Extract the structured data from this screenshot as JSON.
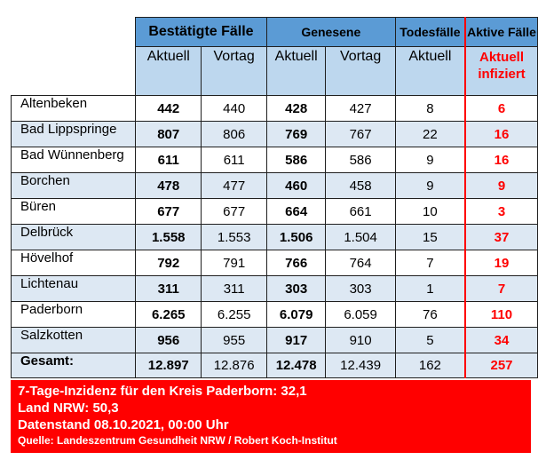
{
  "header": {
    "group1": "Bestätigte Fälle",
    "group2": "Genesene",
    "group3": "Todesfälle",
    "group4": "Aktive Fälle",
    "sub": [
      "Aktuell",
      "Vortag",
      "Aktuell",
      "Vortag",
      "Aktuell"
    ],
    "sub_active_line1": "Aktuell",
    "sub_active_line2": "infiziert"
  },
  "rows": [
    {
      "name": "Altenbeken",
      "conf_now": "442",
      "conf_prev": "440",
      "rec_now": "428",
      "rec_prev": "427",
      "deaths": "8",
      "active": "6"
    },
    {
      "name": "Bad Lippspringe",
      "conf_now": "807",
      "conf_prev": "806",
      "rec_now": "769",
      "rec_prev": "767",
      "deaths": "22",
      "active": "16"
    },
    {
      "name": "Bad Wünnenberg",
      "conf_now": "611",
      "conf_prev": "611",
      "rec_now": "586",
      "rec_prev": "586",
      "deaths": "9",
      "active": "16"
    },
    {
      "name": "Borchen",
      "conf_now": "478",
      "conf_prev": "477",
      "rec_now": "460",
      "rec_prev": "458",
      "deaths": "9",
      "active": "9"
    },
    {
      "name": "Büren",
      "conf_now": "677",
      "conf_prev": "677",
      "rec_now": "664",
      "rec_prev": "661",
      "deaths": "10",
      "active": "3"
    },
    {
      "name": "Delbrück",
      "conf_now": "1.558",
      "conf_prev": "1.553",
      "rec_now": "1.506",
      "rec_prev": "1.504",
      "deaths": "15",
      "active": "37"
    },
    {
      "name": "Hövelhof",
      "conf_now": "792",
      "conf_prev": "791",
      "rec_now": "766",
      "rec_prev": "764",
      "deaths": "7",
      "active": "19"
    },
    {
      "name": "Lichtenau",
      "conf_now": "311",
      "conf_prev": "311",
      "rec_now": "303",
      "rec_prev": "303",
      "deaths": "1",
      "active": "7"
    },
    {
      "name": "Paderborn",
      "conf_now": "6.265",
      "conf_prev": "6.255",
      "rec_now": "6.079",
      "rec_prev": "6.059",
      "deaths": "76",
      "active": "110"
    },
    {
      "name": "Salzkotten",
      "conf_now": "956",
      "conf_prev": "955",
      "rec_now": "917",
      "rec_prev": "910",
      "deaths": "5",
      "active": "34"
    }
  ],
  "total": {
    "name": "Gesamt:",
    "conf_now": "12.897",
    "conf_prev": "12.876",
    "rec_now": "12.478",
    "rec_prev": "12.439",
    "deaths": "162",
    "active": "257"
  },
  "footer": {
    "line1": "7-Tage-Inzidenz für den Kreis Paderborn: 32,1",
    "line2": "Land NRW: 50,3",
    "line3": "Datenstand 08.10.2021, 00:00 Uhr",
    "source": "Quelle: Landeszentrum Gesundheit NRW / Robert Koch-Institut"
  },
  "colors": {
    "header_blue": "#5b9bd5",
    "light_blue": "#bdd7ee",
    "row_alt": "#dde8f3",
    "accent_red": "#ff0000"
  }
}
